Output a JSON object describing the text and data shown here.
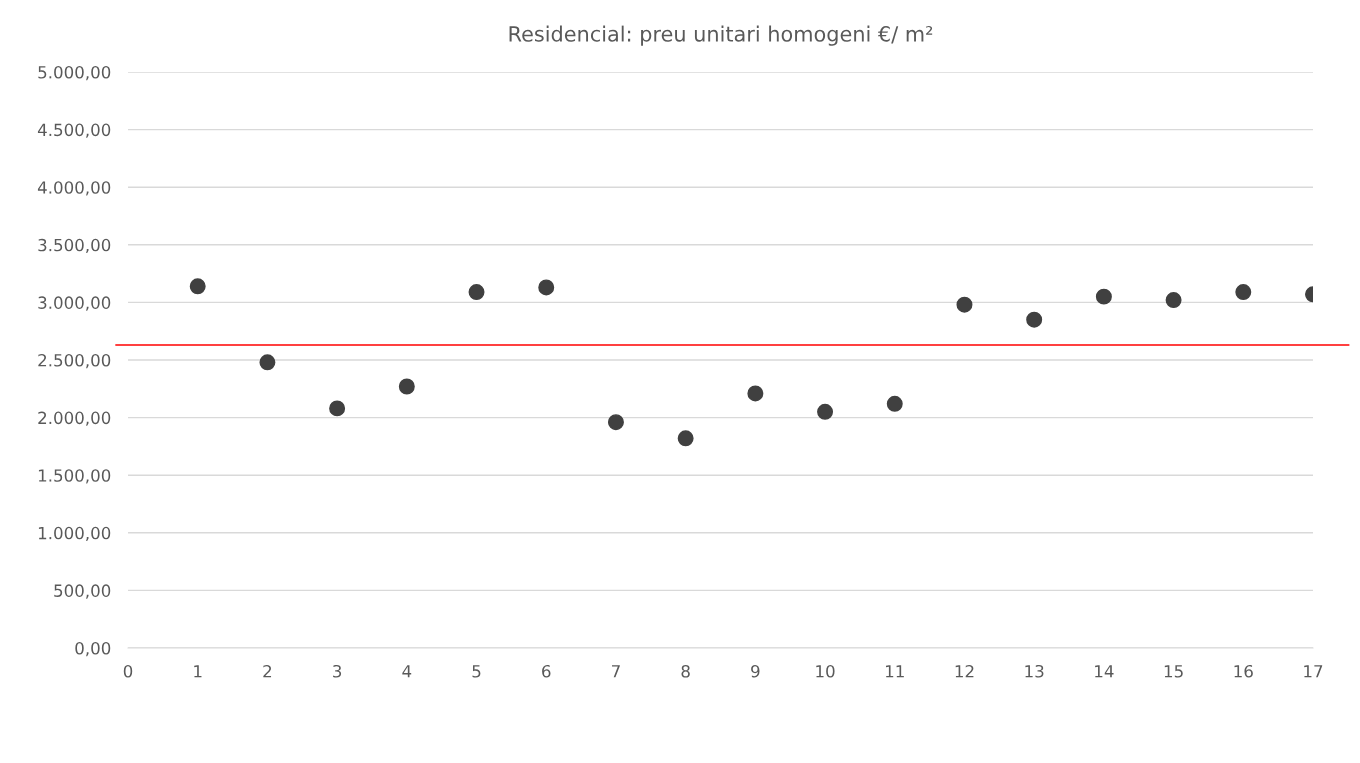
{
  "chart_data": {
    "type": "scatter",
    "title": "Residencial: preu unitari homogeni €/ m²",
    "x": [
      1,
      2,
      3,
      4,
      5,
      6,
      7,
      8,
      9,
      10,
      11,
      12,
      13,
      14,
      15,
      16,
      17
    ],
    "series": [
      {
        "color": "#404040",
        "values": [
          3140,
          2480,
          2080,
          2270,
          3090,
          3130,
          1960,
          1820,
          2210,
          2050,
          2120,
          2980,
          2850,
          3050,
          3020,
          3090,
          3070
        ]
      }
    ],
    "xlim": [
      0,
      17
    ],
    "xticks": [
      0,
      1,
      2,
      3,
      4,
      5,
      6,
      7,
      8,
      9,
      10,
      11,
      12,
      13,
      14,
      15,
      16,
      17
    ],
    "ylim": [
      0,
      5000
    ],
    "yticks": [
      {
        "value": 0,
        "label": "0,00"
      },
      {
        "value": 500,
        "label": "500,00"
      },
      {
        "value": 1000,
        "label": "1.000,00"
      },
      {
        "value": 1500,
        "label": "1.500,00"
      },
      {
        "value": 2000,
        "label": "2.000,00"
      },
      {
        "value": 2500,
        "label": "2.500,00"
      },
      {
        "value": 3000,
        "label": "3.000,00"
      },
      {
        "value": 3500,
        "label": "3.500,00"
      },
      {
        "value": 4000,
        "label": "4.000,00"
      },
      {
        "value": 4500,
        "label": "4.500,00"
      },
      {
        "value": 5000,
        "label": "5.000,00"
      }
    ],
    "ref_lines": [
      {
        "axis": "y",
        "value": 2630,
        "color": "#ff0000"
      }
    ],
    "grid": "y",
    "marker": "circle",
    "legend": false
  }
}
